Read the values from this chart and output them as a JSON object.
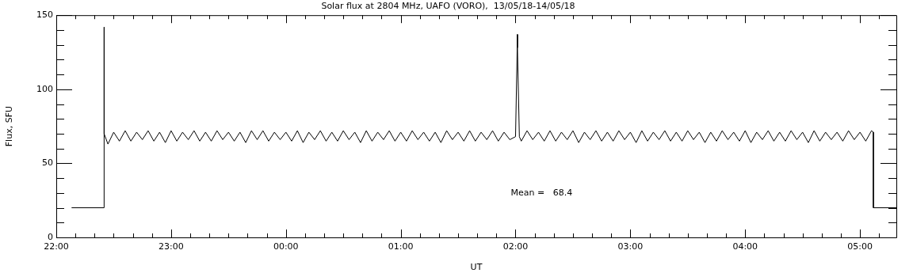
{
  "chart_data": {
    "type": "line",
    "title": "Solar flux at 2804 MHz, UAFO (VORO),  13/05/18-14/05/18",
    "xlabel": "UT",
    "ylabel": "Flux, SFU",
    "xlim": [
      "--05-13T22:00",
      "--05-14T05:19"
    ],
    "xticks": [
      {
        "value": "--05-13T22:00",
        "label": "22:00"
      },
      {
        "value": "--05-13T22:10",
        "label": null
      },
      {
        "value": "--05-13T22:20",
        "label": null
      },
      {
        "value": "--05-13T22:30",
        "label": null
      },
      {
        "value": "--05-13T22:40",
        "label": null
      },
      {
        "value": "--05-13T22:50",
        "label": null
      },
      {
        "value": "--05-13T23:00",
        "label": "23:00"
      },
      {
        "value": "--05-13T23:10",
        "label": null
      },
      {
        "value": "--05-13T23:20",
        "label": null
      },
      {
        "value": "--05-13T23:30",
        "label": null
      },
      {
        "value": "--05-13T23:40",
        "label": null
      },
      {
        "value": "--05-13T23:50",
        "label": null
      },
      {
        "value": "--05-14T00:00",
        "label": "00:00"
      },
      {
        "value": "--05-14T00:10",
        "label": null
      },
      {
        "value": "--05-14T00:20",
        "label": null
      },
      {
        "value": "--05-14T00:30",
        "label": null
      },
      {
        "value": "--05-14T00:40",
        "label": null
      },
      {
        "value": "--05-14T00:50",
        "label": null
      },
      {
        "value": "--05-14T01:00",
        "label": "01:00"
      },
      {
        "value": "--05-14T01:10",
        "label": null
      },
      {
        "value": "--05-14T01:20",
        "label": null
      },
      {
        "value": "--05-14T01:30",
        "label": null
      },
      {
        "value": "--05-14T01:40",
        "label": null
      },
      {
        "value": "--05-14T01:50",
        "label": null
      },
      {
        "value": "--05-14T02:00",
        "label": "02:00"
      },
      {
        "value": "--05-14T02:10",
        "label": null
      },
      {
        "value": "--05-14T02:20",
        "label": null
      },
      {
        "value": "--05-14T02:30",
        "label": null
      },
      {
        "value": "--05-14T02:40",
        "label": null
      },
      {
        "value": "--05-14T02:50",
        "label": null
      },
      {
        "value": "--05-14T03:00",
        "label": "03:00"
      },
      {
        "value": "--05-14T03:10",
        "label": null
      },
      {
        "value": "--05-14T03:20",
        "label": null
      },
      {
        "value": "--05-14T03:30",
        "label": null
      },
      {
        "value": "--05-14T03:40",
        "label": null
      },
      {
        "value": "--05-14T03:50",
        "label": null
      },
      {
        "value": "--05-14T04:00",
        "label": "04:00"
      },
      {
        "value": "--05-14T04:10",
        "label": null
      },
      {
        "value": "--05-14T04:20",
        "label": null
      },
      {
        "value": "--05-14T04:30",
        "label": null
      },
      {
        "value": "--05-14T04:40",
        "label": null
      },
      {
        "value": "--05-14T04:50",
        "label": null
      },
      {
        "value": "--05-14T05:00",
        "label": "05:00"
      },
      {
        "value": "--05-14T05:10",
        "label": null
      }
    ],
    "ylim": [
      0,
      150
    ],
    "yticks": [
      0,
      {
        "value": 10,
        "label": null
      },
      {
        "value": 20,
        "label": null
      },
      {
        "value": 30,
        "label": null
      },
      {
        "value": 40,
        "label": null
      },
      50,
      {
        "value": 60,
        "label": null
      },
      {
        "value": 70,
        "label": null
      },
      {
        "value": 80,
        "label": null
      },
      {
        "value": 90,
        "label": null
      },
      100,
      {
        "value": 110,
        "label": null
      },
      {
        "value": 120,
        "label": null
      },
      {
        "value": 130,
        "label": null
      },
      {
        "value": 140,
        "label": null
      },
      150
    ],
    "annotations": [
      "Mean =   68.4"
    ],
    "grid": false,
    "legend": false,
    "marker": "none",
    "line_style": "solid",
    "series": [
      {
        "color": "#000000",
        "x": [
          "--05-13T22:08",
          "--05-13T22:25",
          "--05-13T22:25",
          "--05-13T22:25",
          "--05-13T22:27",
          "--05-13T22:30",
          "--05-13T22:33",
          "--05-13T22:36",
          "--05-13T22:39",
          "--05-13T22:42",
          "--05-13T22:45",
          "--05-13T22:48",
          "--05-13T22:51",
          "--05-13T22:54",
          "--05-13T22:57",
          "--05-13T23:00",
          "--05-13T23:03",
          "--05-13T23:06",
          "--05-13T23:09",
          "--05-13T23:12",
          "--05-13T23:15",
          "--05-13T23:18",
          "--05-13T23:21",
          "--05-13T23:24",
          "--05-13T23:27",
          "--05-13T23:30",
          "--05-13T23:33",
          "--05-13T23:36",
          "--05-13T23:39",
          "--05-13T23:42",
          "--05-13T23:45",
          "--05-13T23:48",
          "--05-13T23:51",
          "--05-13T23:54",
          "--05-13T23:57",
          "--05-14T00:00",
          "--05-14T00:03",
          "--05-14T00:06",
          "--05-14T00:09",
          "--05-14T00:12",
          "--05-14T00:15",
          "--05-14T00:18",
          "--05-14T00:21",
          "--05-14T00:24",
          "--05-14T00:27",
          "--05-14T00:30",
          "--05-14T00:33",
          "--05-14T00:36",
          "--05-14T00:39",
          "--05-14T00:42",
          "--05-14T00:45",
          "--05-14T00:48",
          "--05-14T00:51",
          "--05-14T00:54",
          "--05-14T00:57",
          "--05-14T01:00",
          "--05-14T01:03",
          "--05-14T01:06",
          "--05-14T01:09",
          "--05-14T01:12",
          "--05-14T01:15",
          "--05-14T01:18",
          "--05-14T01:21",
          "--05-14T01:24",
          "--05-14T01:27",
          "--05-14T01:30",
          "--05-14T01:33",
          "--05-14T01:36",
          "--05-14T01:39",
          "--05-14T01:42",
          "--05-14T01:45",
          "--05-14T01:48",
          "--05-14T01:51",
          "--05-14T01:54",
          "--05-14T01:57",
          "--05-14T02:00",
          "--05-14T02:01",
          "--05-14T02:01",
          "--05-14T02:02",
          "--05-14T02:03",
          "--05-14T02:06",
          "--05-14T02:09",
          "--05-14T02:12",
          "--05-14T02:15",
          "--05-14T02:18",
          "--05-14T02:21",
          "--05-14T02:24",
          "--05-14T02:27",
          "--05-14T02:30",
          "--05-14T02:33",
          "--05-14T02:36",
          "--05-14T02:39",
          "--05-14T02:42",
          "--05-14T02:45",
          "--05-14T02:48",
          "--05-14T02:51",
          "--05-14T02:54",
          "--05-14T02:57",
          "--05-14T03:00",
          "--05-14T03:03",
          "--05-14T03:06",
          "--05-14T03:09",
          "--05-14T03:12",
          "--05-14T03:15",
          "--05-14T03:18",
          "--05-14T03:21",
          "--05-14T03:24",
          "--05-14T03:27",
          "--05-14T03:30",
          "--05-14T03:33",
          "--05-14T03:36",
          "--05-14T03:39",
          "--05-14T03:42",
          "--05-14T03:45",
          "--05-14T03:48",
          "--05-14T03:51",
          "--05-14T03:54",
          "--05-14T03:57",
          "--05-14T04:00",
          "--05-14T04:03",
          "--05-14T04:06",
          "--05-14T04:09",
          "--05-14T04:12",
          "--05-14T04:15",
          "--05-14T04:18",
          "--05-14T04:21",
          "--05-14T04:24",
          "--05-14T04:27",
          "--05-14T04:30",
          "--05-14T04:33",
          "--05-14T04:36",
          "--05-14T04:39",
          "--05-14T04:42",
          "--05-14T04:45",
          "--05-14T04:48",
          "--05-14T04:51",
          "--05-14T04:54",
          "--05-14T04:57",
          "--05-14T05:00",
          "--05-14T05:03",
          "--05-14T05:06",
          "--05-14T05:07",
          "--05-14T05:07",
          "--05-14T05:19"
        ],
        "values": [
          20,
          20,
          142,
          70,
          63,
          71,
          65,
          72,
          65,
          71,
          66,
          72,
          65,
          71,
          64,
          72,
          65,
          71,
          66,
          72,
          65,
          71,
          65,
          72,
          66,
          71,
          65,
          71,
          64,
          72,
          66,
          72,
          65,
          71,
          66,
          71,
          65,
          72,
          64,
          71,
          66,
          72,
          65,
          71,
          65,
          72,
          66,
          71,
          64,
          72,
          65,
          71,
          66,
          72,
          65,
          71,
          65,
          72,
          66,
          71,
          65,
          71,
          64,
          72,
          66,
          71,
          65,
          72,
          65,
          71,
          66,
          72,
          65,
          71,
          66,
          68,
          137,
          128,
          68,
          65,
          72,
          66,
          71,
          65,
          72,
          65,
          71,
          66,
          72,
          64,
          71,
          66,
          72,
          65,
          71,
          65,
          72,
          66,
          71,
          64,
          72,
          65,
          71,
          66,
          72,
          65,
          71,
          65,
          72,
          66,
          71,
          64,
          71,
          65,
          72,
          66,
          71,
          65,
          72,
          64,
          71,
          66,
          72,
          65,
          71,
          65,
          72,
          66,
          71,
          64,
          72,
          65,
          71,
          66,
          71,
          65,
          72,
          66,
          71,
          65,
          72,
          71,
          20,
          20
        ]
      }
    ]
  }
}
